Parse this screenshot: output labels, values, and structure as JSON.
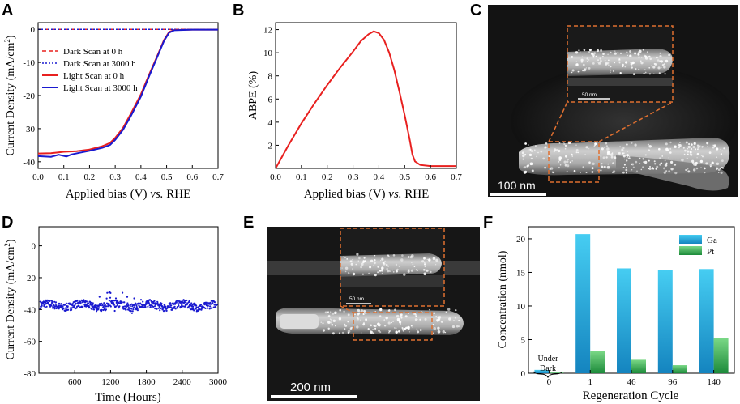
{
  "panel_letters": {
    "A": "A",
    "B": "B",
    "C": "C",
    "D": "D",
    "E": "E",
    "F": "F"
  },
  "colors": {
    "red": "#e8201f",
    "blue": "#1a1ad0",
    "gaTop": "#43c8f0",
    "gaBottom": "#1488c0",
    "ptTop": "#6fd37f",
    "ptBottom": "#1f8f3d",
    "orange": "#e07030"
  },
  "chart_data": [
    {
      "id": "A",
      "type": "line",
      "xlabel_pre": "Applied bias (V) ",
      "xlabel_it": "vs.",
      "xlabel_post": " RHE",
      "ylabel": "Current Density (mA/cm",
      "ylabel_sup": "2",
      "ylabel_end": ")",
      "xlim": [
        0.0,
        0.7
      ],
      "ylim": [
        -42,
        2
      ],
      "xticks": [
        "0.0",
        "0.1",
        "0.2",
        "0.3",
        "0.4",
        "0.5",
        "0.6",
        "0.7"
      ],
      "yticks": [
        "0",
        "-10",
        "-20",
        "-30",
        "-40"
      ],
      "legend": [
        "Dark Scan at 0 h",
        "Dark Scan at 3000 h",
        "Light Scan at 0 h",
        "Light Scan at 3000 h"
      ],
      "series": [
        {
          "name": "Dark Scan at 0 h",
          "x": [
            0.0,
            0.7
          ],
          "y": [
            0,
            0
          ]
        },
        {
          "name": "Dark Scan at 3000 h",
          "x": [
            0.0,
            0.7
          ],
          "y": [
            0,
            0
          ]
        },
        {
          "name": "Light Scan at 0 h",
          "x": [
            0.0,
            0.05,
            0.1,
            0.15,
            0.2,
            0.25,
            0.28,
            0.3,
            0.33,
            0.36,
            0.4,
            0.43,
            0.46,
            0.49,
            0.51,
            0.53,
            0.6,
            0.7
          ],
          "y": [
            -37.5,
            -37.4,
            -37.0,
            -36.8,
            -36.3,
            -35.3,
            -34.3,
            -32.8,
            -29.8,
            -25.6,
            -19.6,
            -14.0,
            -8.7,
            -3.2,
            -0.8,
            -0.2,
            -0.1,
            -0.1
          ]
        },
        {
          "name": "Light Scan at 3000 h",
          "x": [
            0.0,
            0.05,
            0.08,
            0.11,
            0.13,
            0.16,
            0.2,
            0.25,
            0.28,
            0.3,
            0.33,
            0.36,
            0.4,
            0.43,
            0.46,
            0.49,
            0.51,
            0.53,
            0.6,
            0.7
          ],
          "y": [
            -38.3,
            -38.5,
            -37.9,
            -38.4,
            -37.8,
            -37.3,
            -36.7,
            -35.8,
            -34.9,
            -33.4,
            -30.4,
            -26.3,
            -20.3,
            -14.5,
            -9.0,
            -3.5,
            -1.0,
            -0.3,
            -0.1,
            -0.1
          ]
        }
      ]
    },
    {
      "id": "B",
      "type": "line",
      "xlabel_pre": "Applied bias (V) ",
      "xlabel_it": "vs.",
      "xlabel_post": " RHE",
      "ylabel": "ABPE (%)",
      "xlim": [
        0.0,
        0.7
      ],
      "ylim": [
        0,
        12.6
      ],
      "xticks": [
        "0.0",
        "0.1",
        "0.2",
        "0.3",
        "0.4",
        "0.5",
        "0.6",
        "0.7"
      ],
      "yticks": [
        "2",
        "4",
        "6",
        "8",
        "10",
        "12"
      ],
      "series": [
        {
          "name": "ABPE",
          "x": [
            0.0,
            0.05,
            0.1,
            0.15,
            0.2,
            0.25,
            0.3,
            0.33,
            0.36,
            0.38,
            0.4,
            0.42,
            0.44,
            0.46,
            0.48,
            0.5,
            0.52,
            0.53,
            0.54,
            0.56,
            0.6,
            0.65,
            0.7
          ],
          "y": [
            0.0,
            2.0,
            3.9,
            5.6,
            7.2,
            8.7,
            10.1,
            11.0,
            11.6,
            11.85,
            11.7,
            11.1,
            10.0,
            8.5,
            6.6,
            4.6,
            2.4,
            1.2,
            0.6,
            0.3,
            0.2,
            0.2,
            0.2
          ]
        }
      ]
    },
    {
      "id": "D",
      "type": "scatter",
      "xlabel": "Time (Hours)",
      "ylabel": "Current Density (mA/cm",
      "ylabel_sup": "2",
      "ylabel_end": ")",
      "xlim": [
        0,
        3000
      ],
      "ylim": [
        -80,
        12
      ],
      "xticks": [
        "600",
        "1200",
        "1800",
        "2400",
        "3000"
      ],
      "yticks": [
        "0",
        "-20",
        "-40",
        "-60",
        "-80"
      ],
      "mean": -37.5,
      "noise": 2.5
    },
    {
      "id": "F",
      "type": "bar",
      "xlabel": "Regeneration Cycle",
      "ylabel": "Concentration (nmol)",
      "categories": [
        "0",
        "1",
        "46",
        "96",
        "140"
      ],
      "ylim": [
        0,
        21.8
      ],
      "yticks": [
        "0",
        "5",
        "10",
        "15",
        "20"
      ],
      "series": [
        {
          "name": "Ga",
          "values": [
            0.5,
            20.7,
            15.6,
            15.3,
            15.5
          ]
        },
        {
          "name": "Pt",
          "values": [
            0.1,
            3.3,
            2.0,
            1.2,
            5.2
          ]
        }
      ],
      "annotation": [
        "Under",
        "Dark"
      ]
    }
  ],
  "micrographs": {
    "C": {
      "scale": "100 nm",
      "inset_scale": "50 nm"
    },
    "E": {
      "scale": "200 nm",
      "inset_scale": "50 nm"
    }
  }
}
